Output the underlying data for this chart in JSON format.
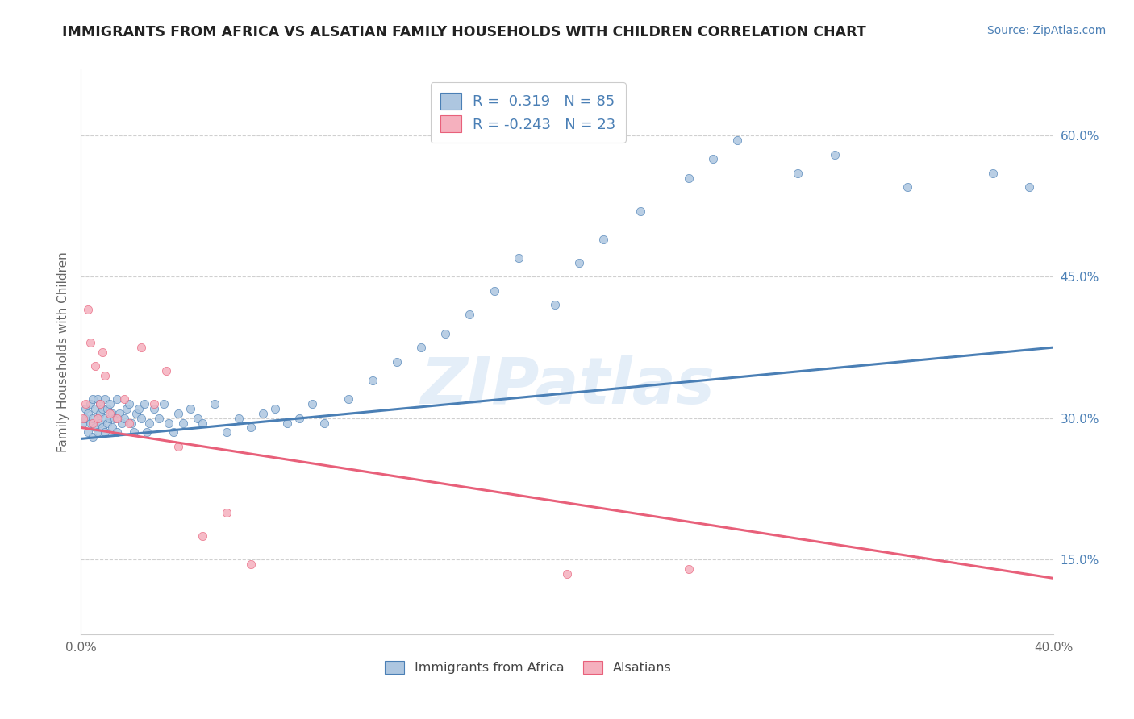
{
  "title": "IMMIGRANTS FROM AFRICA VS ALSATIAN FAMILY HOUSEHOLDS WITH CHILDREN CORRELATION CHART",
  "source": "Source: ZipAtlas.com",
  "ylabel": "Family Households with Children",
  "xlim": [
    0.0,
    0.4
  ],
  "ylim": [
    0.07,
    0.67
  ],
  "yticks_right": [
    0.15,
    0.3,
    0.45,
    0.6
  ],
  "ytick_right_labels": [
    "15.0%",
    "30.0%",
    "45.0%",
    "60.0%"
  ],
  "blue_color": "#adc6e0",
  "pink_color": "#f5b0be",
  "blue_line_color": "#4a7fb5",
  "pink_line_color": "#e8607a",
  "legend_blue_label": "R =  0.319   N = 85",
  "legend_pink_label": "R = -0.243   N = 23",
  "watermark": "ZIPatlas",
  "blue_scatter_x": [
    0.001,
    0.002,
    0.002,
    0.003,
    0.003,
    0.004,
    0.004,
    0.005,
    0.005,
    0.005,
    0.006,
    0.006,
    0.007,
    0.007,
    0.007,
    0.008,
    0.008,
    0.008,
    0.009,
    0.009,
    0.01,
    0.01,
    0.01,
    0.011,
    0.011,
    0.012,
    0.012,
    0.013,
    0.013,
    0.014,
    0.015,
    0.015,
    0.016,
    0.017,
    0.018,
    0.019,
    0.02,
    0.021,
    0.022,
    0.023,
    0.024,
    0.025,
    0.026,
    0.027,
    0.028,
    0.03,
    0.032,
    0.034,
    0.036,
    0.038,
    0.04,
    0.042,
    0.045,
    0.048,
    0.05,
    0.055,
    0.06,
    0.065,
    0.07,
    0.075,
    0.08,
    0.085,
    0.09,
    0.095,
    0.1,
    0.11,
    0.12,
    0.13,
    0.14,
    0.15,
    0.16,
    0.17,
    0.18,
    0.195,
    0.205,
    0.215,
    0.23,
    0.25,
    0.26,
    0.27,
    0.295,
    0.31,
    0.34,
    0.375,
    0.39
  ],
  "blue_scatter_y": [
    0.295,
    0.3,
    0.31,
    0.285,
    0.305,
    0.295,
    0.315,
    0.28,
    0.3,
    0.32,
    0.29,
    0.31,
    0.285,
    0.3,
    0.32,
    0.295,
    0.305,
    0.315,
    0.29,
    0.31,
    0.285,
    0.3,
    0.32,
    0.295,
    0.31,
    0.3,
    0.315,
    0.29,
    0.305,
    0.3,
    0.285,
    0.32,
    0.305,
    0.295,
    0.3,
    0.31,
    0.315,
    0.295,
    0.285,
    0.305,
    0.31,
    0.3,
    0.315,
    0.285,
    0.295,
    0.31,
    0.3,
    0.315,
    0.295,
    0.285,
    0.305,
    0.295,
    0.31,
    0.3,
    0.295,
    0.315,
    0.285,
    0.3,
    0.29,
    0.305,
    0.31,
    0.295,
    0.3,
    0.315,
    0.295,
    0.32,
    0.34,
    0.36,
    0.375,
    0.39,
    0.41,
    0.435,
    0.47,
    0.42,
    0.465,
    0.49,
    0.52,
    0.555,
    0.575,
    0.595,
    0.56,
    0.58,
    0.545,
    0.56,
    0.545
  ],
  "pink_scatter_x": [
    0.001,
    0.002,
    0.003,
    0.004,
    0.005,
    0.006,
    0.007,
    0.008,
    0.009,
    0.01,
    0.012,
    0.015,
    0.018,
    0.02,
    0.025,
    0.03,
    0.035,
    0.04,
    0.05,
    0.06,
    0.07,
    0.2,
    0.25
  ],
  "pink_scatter_y": [
    0.3,
    0.315,
    0.415,
    0.38,
    0.295,
    0.355,
    0.3,
    0.315,
    0.37,
    0.345,
    0.305,
    0.3,
    0.32,
    0.295,
    0.375,
    0.315,
    0.35,
    0.27,
    0.175,
    0.2,
    0.145,
    0.135,
    0.14
  ],
  "blue_trend_x": [
    0.0,
    0.4
  ],
  "blue_trend_y": [
    0.278,
    0.375
  ],
  "pink_trend_x": [
    0.0,
    0.4
  ],
  "pink_trend_y": [
    0.29,
    0.13
  ],
  "background_color": "#ffffff",
  "grid_color": "#d0d0d0"
}
